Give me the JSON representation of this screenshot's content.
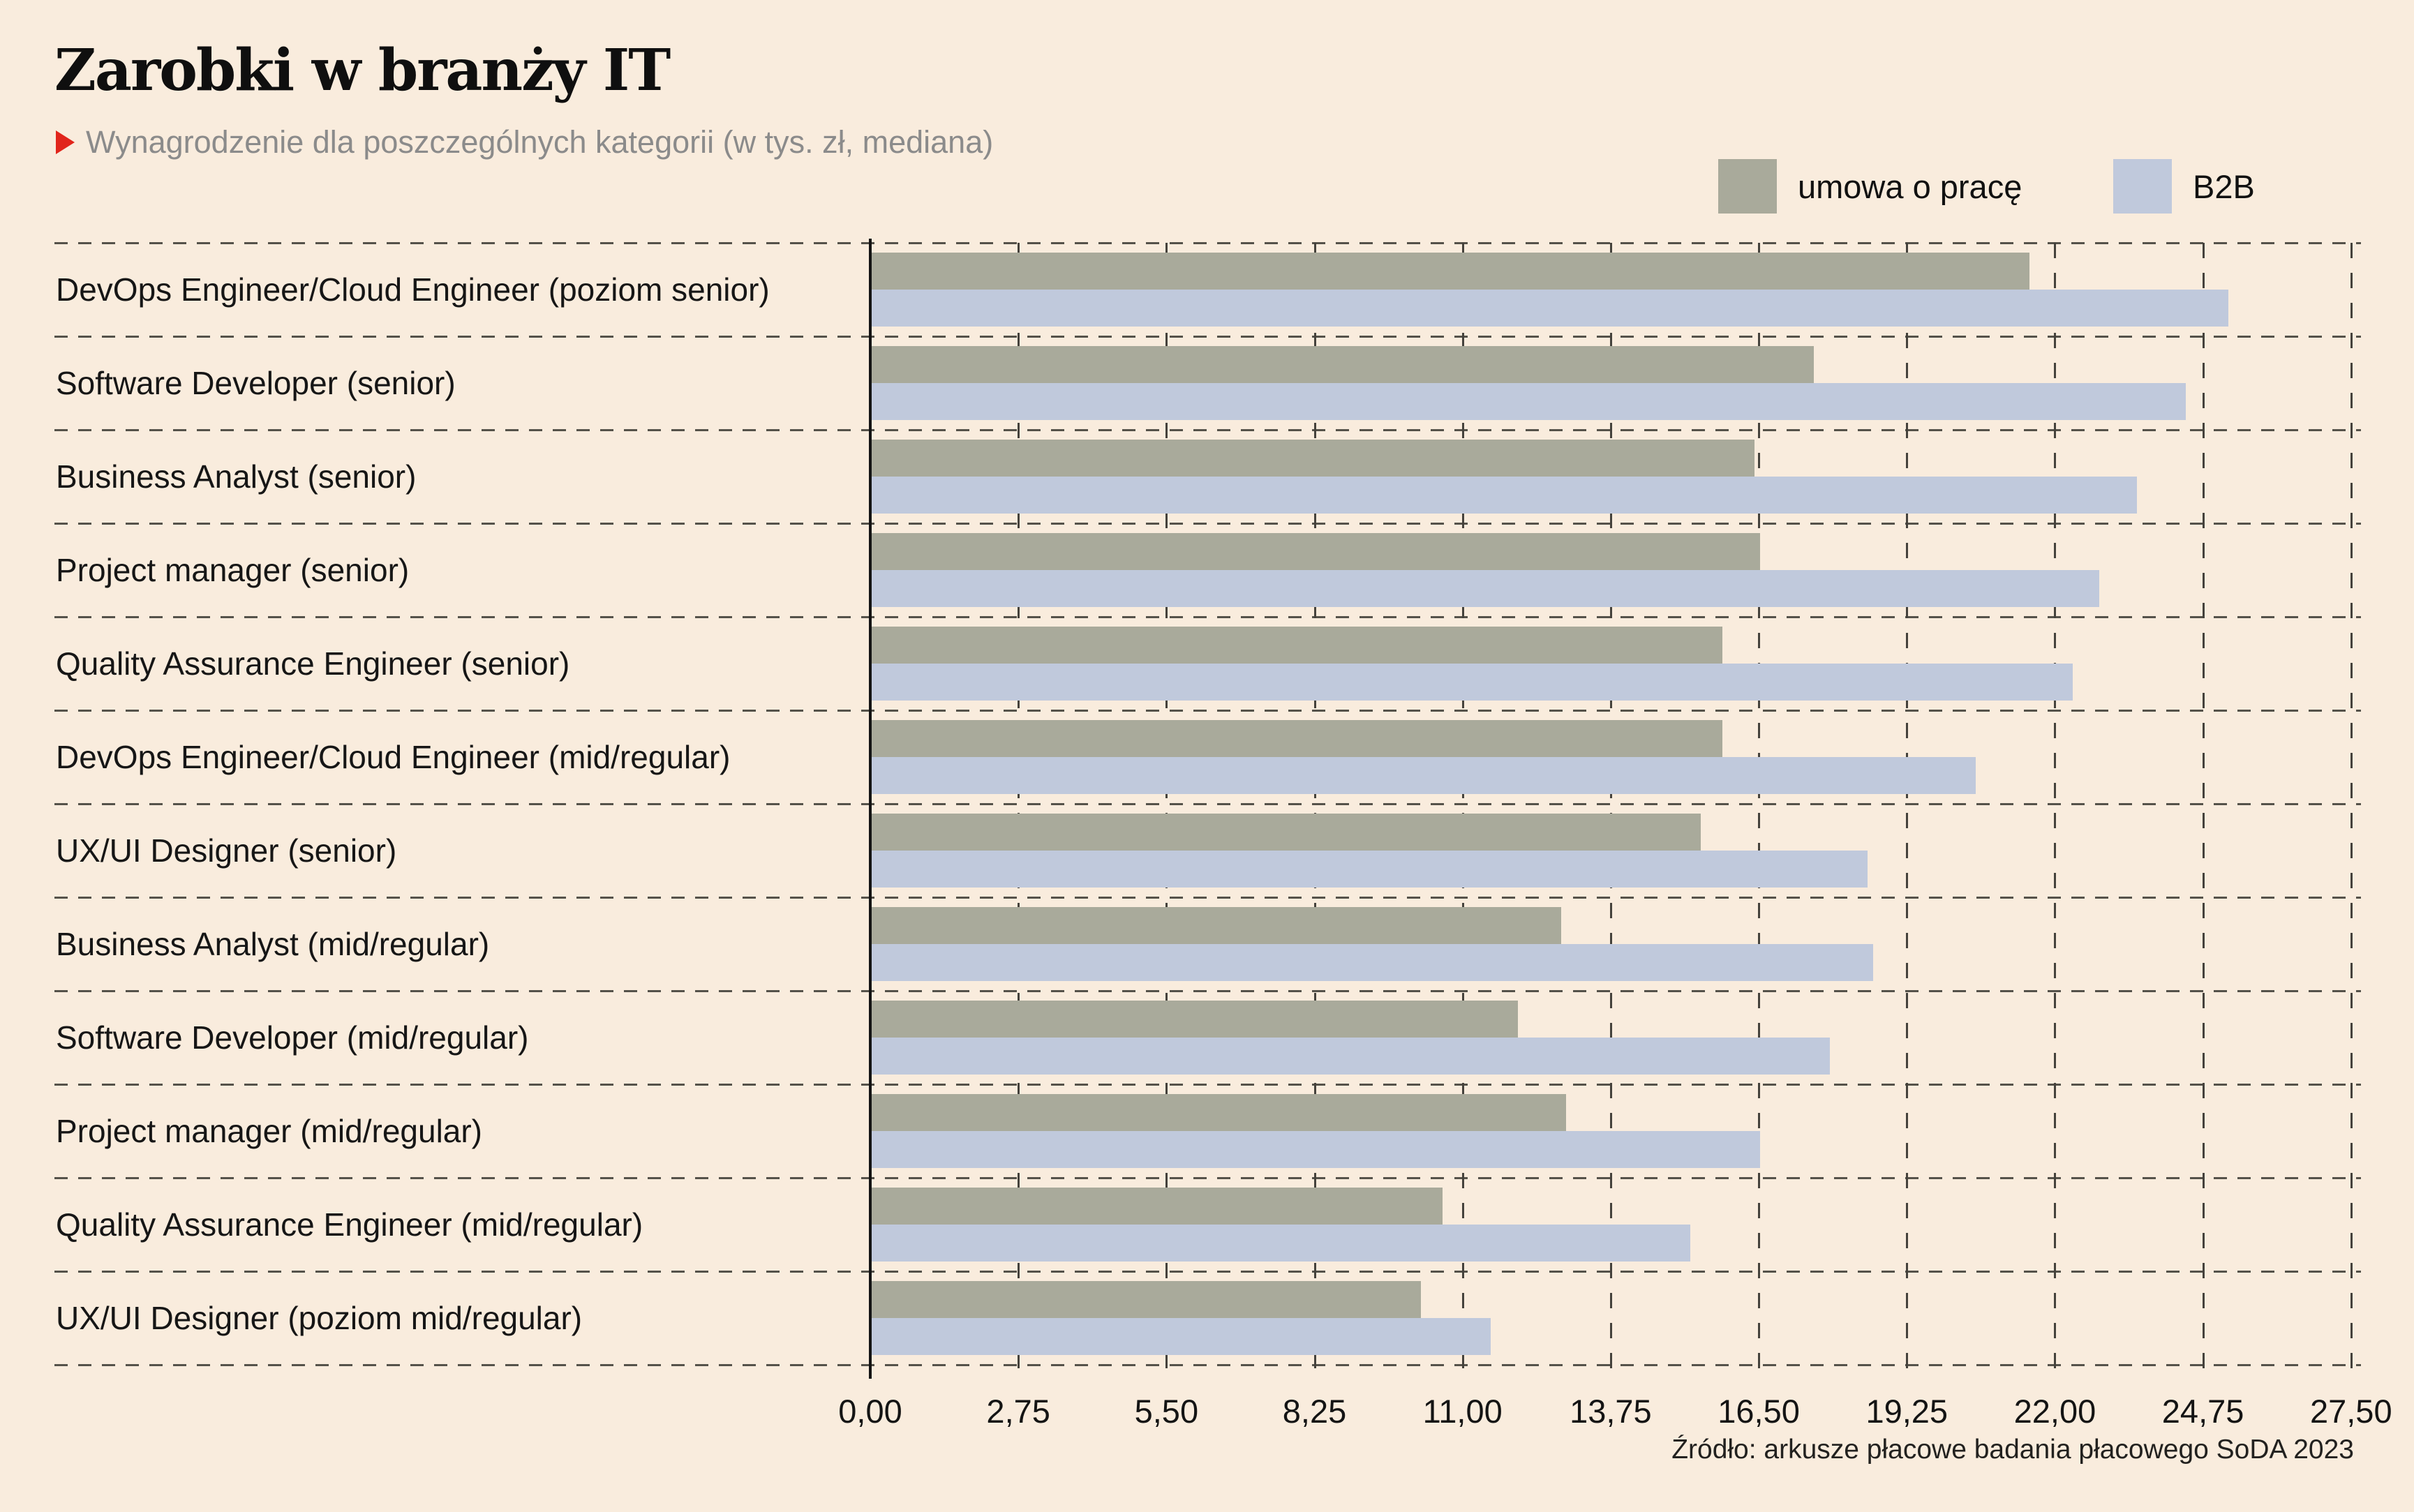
{
  "header": {
    "title": "Zarobki w branży IT",
    "subtitle": "Wynagrodzenie dla poszczególnych kategorii (w tys. zł, mediana)"
  },
  "legend": {
    "items": [
      {
        "label": "umowa o pracę",
        "color": "#a9aa9b"
      },
      {
        "label": "B2B",
        "color": "#c0c9dc"
      }
    ]
  },
  "source": "Źródło: arkusze płacowe badania płacowego SoDA 2023",
  "colors": {
    "background": "#f9ecdd",
    "bar_umowa": "#a9aa9b",
    "bar_b2b": "#c0c9dc",
    "axis": "#141414",
    "grid_dash": "#4a473f",
    "subtitle_text": "#8b8b8b",
    "accent_red": "#e1251b"
  },
  "chart_data": {
    "type": "bar",
    "orientation": "horizontal",
    "title": "Zarobki w branży IT",
    "subtitle": "Wynagrodzenie dla poszczególnych kategorii (w tys. zł, mediana)",
    "unit": "tys. zł, mediana",
    "categories": [
      "DevOps Engineer/Cloud Engineer (poziom senior)",
      "Software Developer (senior)",
      "Business Analyst (senior)",
      "Project manager (senior)",
      "Quality Assurance Engineer (senior)",
      "DevOps Engineer/Cloud Engineer (mid/regular)",
      "UX/UI Designer (senior)",
      "Business Analyst (mid/regular)",
      "Software Developer (mid/regular)",
      "Project manager (mid/regular)",
      "Quality Assurance Engineer (mid/regular)",
      "UX/UI Designer (poziom mid/regular)"
    ],
    "series": [
      {
        "name": "umowa o pracę",
        "color": "#a9aa9b",
        "values": [
          21.5,
          17.5,
          16.4,
          16.5,
          15.8,
          15.8,
          15.4,
          12.8,
          12.0,
          12.9,
          10.6,
          10.2
        ]
      },
      {
        "name": "B2B",
        "color": "#c0c9dc",
        "values": [
          25.2,
          24.4,
          23.5,
          22.8,
          22.3,
          20.5,
          18.5,
          18.6,
          17.8,
          16.5,
          15.2,
          11.5
        ]
      }
    ],
    "xlim": [
      0,
      27.5
    ],
    "xtick_labels": [
      "0,00",
      "2,75",
      "5,50",
      "8,25",
      "11,00",
      "13,75",
      "16,50",
      "19,25",
      "22,00",
      "24,75",
      "27,50"
    ],
    "xtick_values": [
      0,
      2.75,
      5.5,
      8.25,
      11,
      13.75,
      16.5,
      19.25,
      22,
      24.75,
      27.5
    ],
    "grid": "dashed",
    "legend_position": "top-right",
    "source": "Źródło: arkusze płacowe badania płacowego SoDA 2023"
  }
}
